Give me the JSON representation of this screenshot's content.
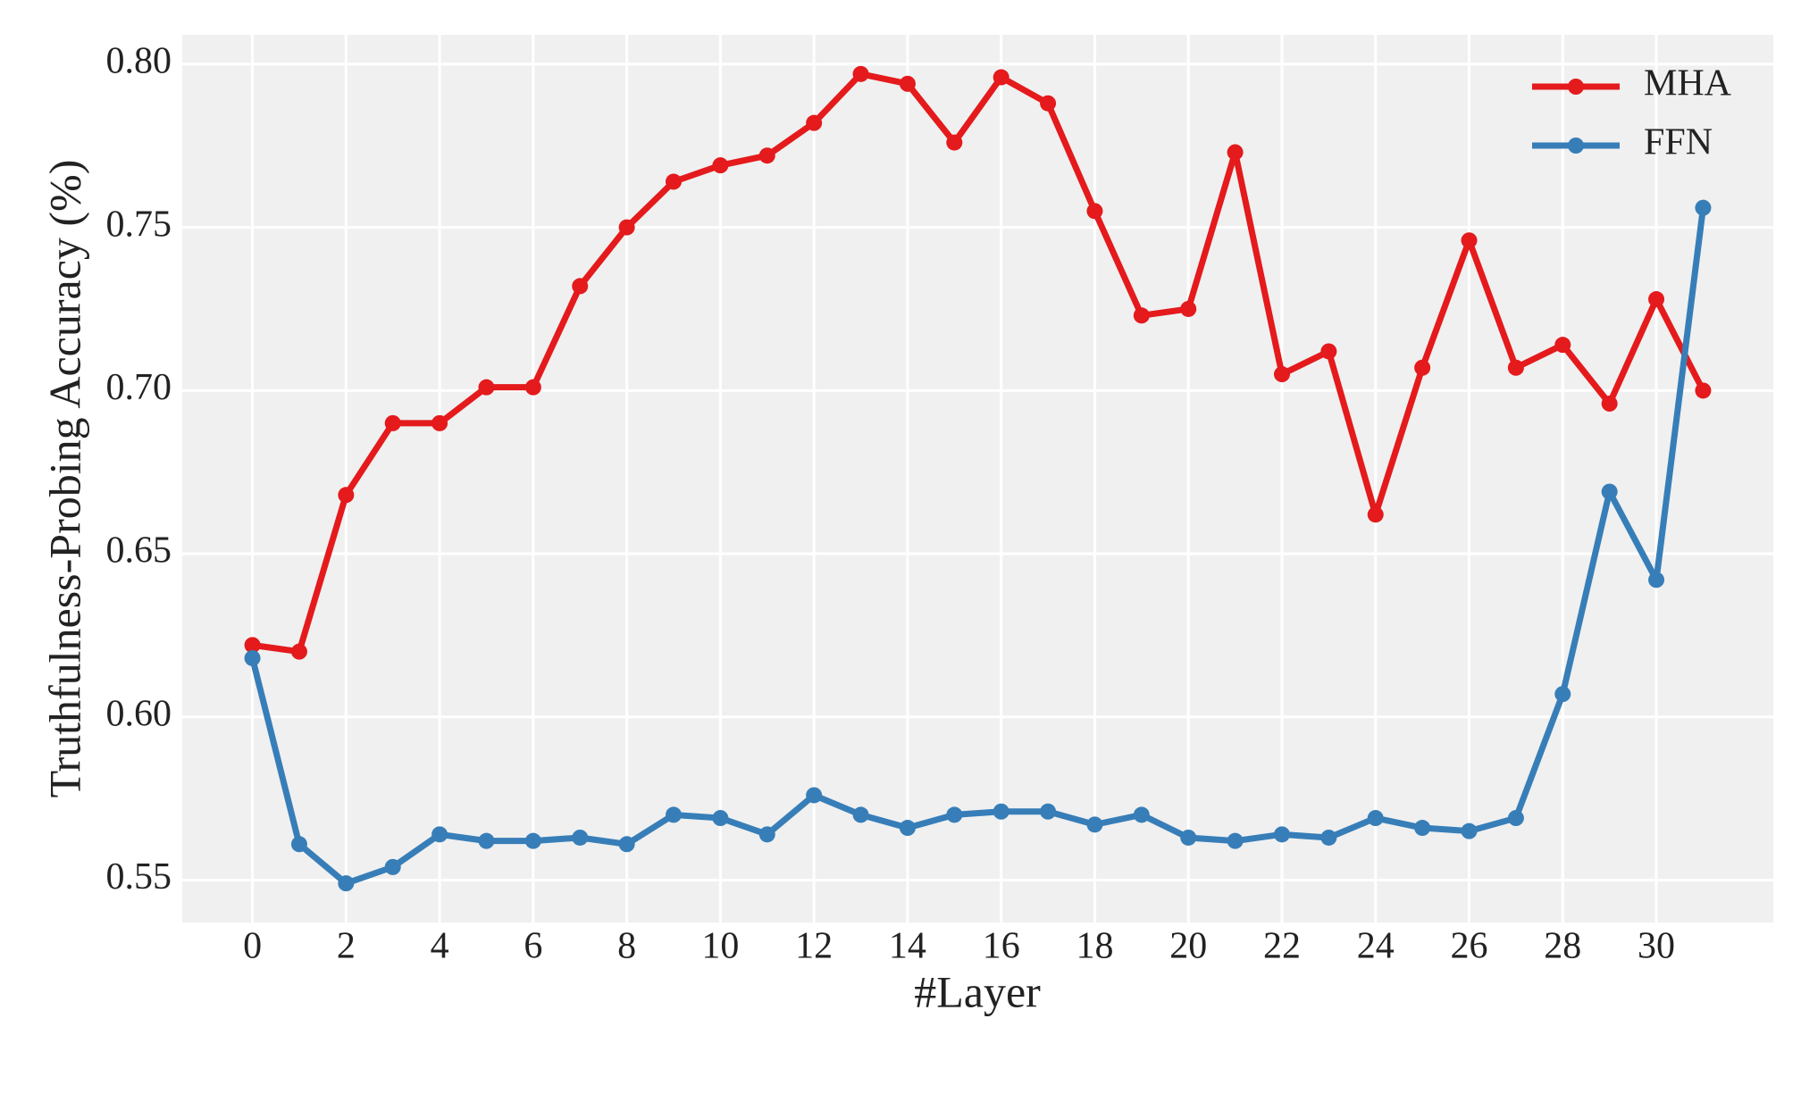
{
  "chart_data": {
    "type": "line",
    "x_label": "#Layer",
    "y_label": "Truthfulness-Probing Accuracy (%)",
    "x": [
      0,
      1,
      2,
      3,
      4,
      5,
      6,
      7,
      8,
      9,
      10,
      11,
      12,
      13,
      14,
      15,
      16,
      17,
      18,
      19,
      20,
      21,
      22,
      23,
      24,
      25,
      26,
      27,
      28,
      29,
      30,
      31
    ],
    "series": [
      {
        "name": "MHA",
        "color": "#e41a1c",
        "values": [
          0.622,
          0.62,
          0.668,
          0.69,
          0.69,
          0.701,
          0.701,
          0.732,
          0.75,
          0.764,
          0.769,
          0.772,
          0.782,
          0.797,
          0.794,
          0.776,
          0.796,
          0.788,
          0.755,
          0.723,
          0.725,
          0.773,
          0.705,
          0.712,
          0.662,
          0.707,
          0.746,
          0.707,
          0.714,
          0.696,
          0.728,
          0.7
        ]
      },
      {
        "name": "FFN",
        "color": "#377eb8",
        "values": [
          0.618,
          0.561,
          0.549,
          0.554,
          0.564,
          0.562,
          0.562,
          0.563,
          0.561,
          0.57,
          0.569,
          0.564,
          0.576,
          0.57,
          0.566,
          0.57,
          0.571,
          0.571,
          0.567,
          0.57,
          0.563,
          0.562,
          0.564,
          0.563,
          0.569,
          0.566,
          0.565,
          0.569,
          0.607,
          0.669,
          0.642,
          0.756
        ]
      }
    ],
    "xlim": [
      -1.5,
      32.5
    ],
    "ylim": [
      0.537,
      0.809
    ],
    "xticks": [
      0,
      2,
      4,
      6,
      8,
      10,
      12,
      14,
      16,
      18,
      20,
      22,
      24,
      26,
      28,
      30
    ],
    "yticks": [
      0.55,
      {
        "value": 0.6,
        "label": "0.60"
      },
      0.65,
      {
        "value": 0.7,
        "label": "0.70"
      },
      0.75,
      {
        "value": 0.8,
        "label": "0.80"
      }
    ],
    "grid": true,
    "legend": "upper right"
  }
}
